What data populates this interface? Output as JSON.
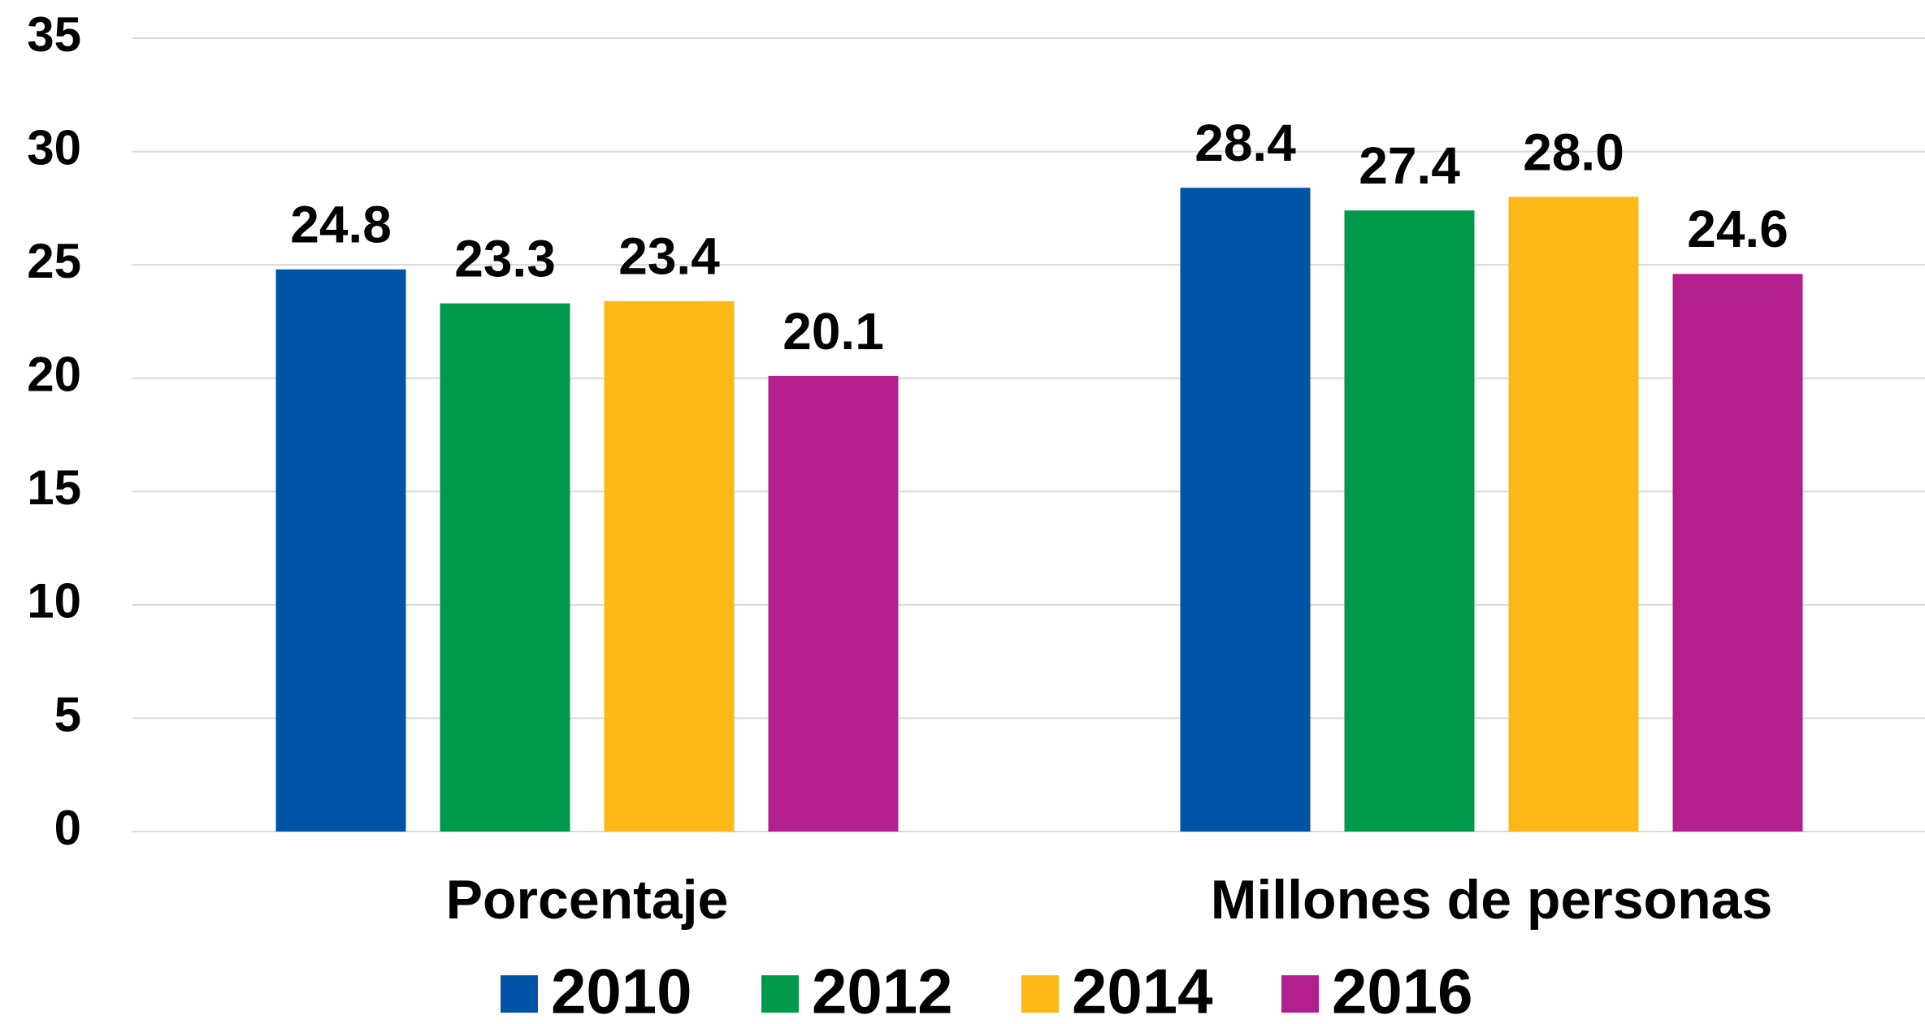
{
  "chart_data": {
    "type": "bar",
    "categories": [
      "Porcentaje",
      "Millones de personas"
    ],
    "series": [
      {
        "name": "2010",
        "color": "#0054a6",
        "values": [
          24.8,
          28.4
        ]
      },
      {
        "name": "2012",
        "color": "#00984a",
        "values": [
          23.3,
          27.4
        ]
      },
      {
        "name": "2014",
        "color": "#fbb817",
        "values": [
          23.4,
          28
        ],
        "value_labels": [
          "23.4",
          "28.0"
        ]
      },
      {
        "name": "2016",
        "color": "#b41f8e",
        "values": [
          20.1,
          24.6
        ]
      }
    ],
    "ylim": [
      0,
      35
    ],
    "yticks": [
      0,
      5,
      10,
      15,
      20,
      25,
      30,
      35
    ],
    "grid": true,
    "legend": "bottom"
  }
}
